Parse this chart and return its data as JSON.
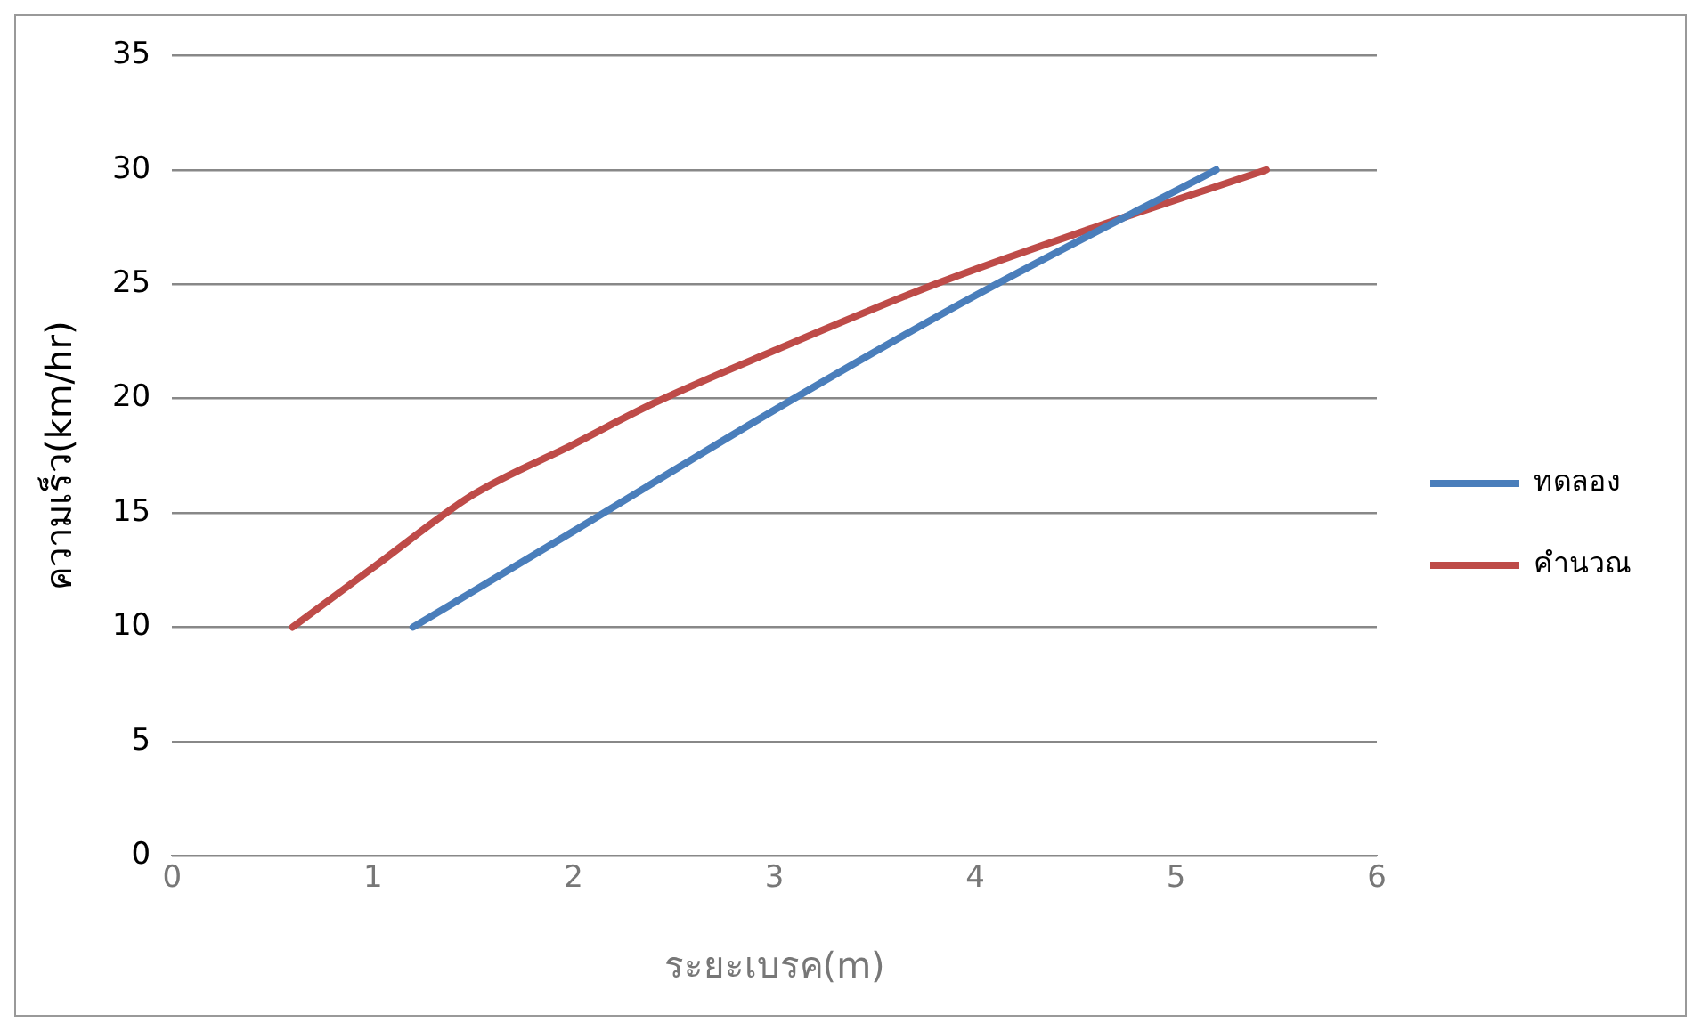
{
  "chart_data": {
    "type": "line",
    "xlabel": "ระยะเบรค(m)",
    "ylabel": "ความเร็ว(km/hr)",
    "xlim": [
      0,
      6
    ],
    "xticks": [
      0,
      1,
      2,
      3,
      4,
      5,
      6
    ],
    "ylim": [
      0,
      35
    ],
    "yticks": [
      0,
      5,
      10,
      15,
      20,
      25,
      30,
      35
    ],
    "grid": "y",
    "legend": "right",
    "marker": "none",
    "series": [
      {
        "name": "ทดลอง",
        "color": "#4a7ebb",
        "x": [
          1.2,
          2,
          3,
          4,
          5.2
        ],
        "values": [
          10,
          14.2,
          19.5,
          24.5,
          30
        ]
      },
      {
        "name": "คำนวณ",
        "color": "#be4b48",
        "x": [
          0.6,
          1,
          1.5,
          2,
          2.4,
          3,
          3.8,
          4.6,
          5.45
        ],
        "values": [
          10,
          12.6,
          15.8,
          18,
          19.8,
          22.1,
          25,
          27.5,
          30
        ]
      }
    ]
  }
}
